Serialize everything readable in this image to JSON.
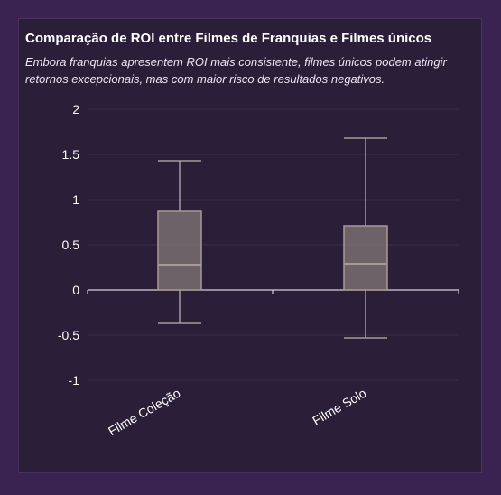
{
  "chart_data": {
    "type": "box",
    "title": "Comparação de ROI entre Filmes de Franquias e Filmes únicos",
    "subtitle": "Embora franquias apresentem ROI mais consistente, filmes únicos podem atingir retornos excepcionais, mas com maior risco de resultados negativos.",
    "xlabel": "",
    "ylabel": "",
    "ylim": [
      -1.25,
      2
    ],
    "yticks": [
      2,
      1.5,
      1,
      0.5,
      0,
      -0.5,
      -1
    ],
    "ytick_labels": [
      "2",
      "1.5",
      "1",
      "0.5",
      "0",
      "-0.5",
      "-1"
    ],
    "categories": [
      "Filme Coleção",
      "Filme Solo"
    ],
    "boxes": [
      {
        "category": "Filme Coleção",
        "min": -0.37,
        "q1": 0.0,
        "median": 0.28,
        "q3": 0.87,
        "max": 1.43
      },
      {
        "category": "Filme Solo",
        "min": -0.53,
        "q1": 0.0,
        "median": 0.29,
        "q3": 0.71,
        "max": 1.68
      }
    ],
    "grid": true,
    "colors": {
      "box_fill": "#7a6e72",
      "box_stroke": "#a89a94",
      "whisker": "#a89a94",
      "grid": "#3a2e48",
      "axis": "#d8d0d8",
      "text": "#ffffff"
    }
  }
}
